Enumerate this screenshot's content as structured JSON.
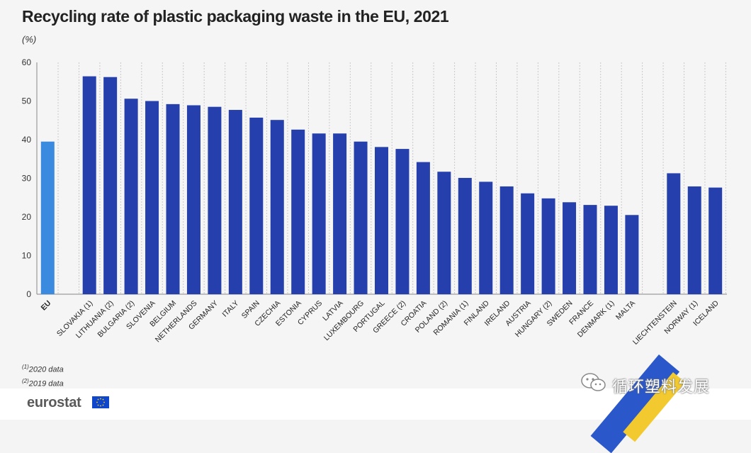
{
  "title": "Recycling rate of plastic packaging waste in the EU, 2021",
  "unit": "(%)",
  "notes": [
    {
      "mark": "(1)",
      "text": "2020 data"
    },
    {
      "mark": "(2)",
      "text": "2019 data"
    }
  ],
  "logo": "eurostat",
  "watermark": "循环塑料发展",
  "colors": {
    "eu": "#3a8be0",
    "country": "#2540ac",
    "grid": "#c9c9c9"
  },
  "chart_data": {
    "type": "bar",
    "title": "Recycling rate of plastic packaging waste in the EU, 2021",
    "ylabel": "(%)",
    "ylim": [
      0,
      60
    ],
    "yticks": [
      0,
      10,
      20,
      30,
      40,
      50,
      60
    ],
    "grid": "vertical dotted",
    "categories": [
      "EU",
      "SLOVAKIA (1)",
      "LITHUANIA (2)",
      "BULGARIA (2)",
      "SLOVENIA",
      "BELGIUM",
      "NETHERLANDS",
      "GERMANY",
      "ITALY",
      "SPAIN",
      "CZECHIA",
      "ESTONIA",
      "CYPRUS",
      "LATVIA",
      "LUXEMBOURG",
      "PORTUGAL",
      "GREECE (2)",
      "CROATIA",
      "POLAND (2)",
      "ROMANIA (1)",
      "FINLAND",
      "IRELAND",
      "AUSTRIA",
      "HUNGARY (2)",
      "SWEDEN",
      "FRANCE",
      "DENMARK (1)",
      "MALTA",
      "LIECHTENSTEIN",
      "NORWAY (1)",
      "ICELAND"
    ],
    "values": [
      39.5,
      56.4,
      56.2,
      50.6,
      50.0,
      49.2,
      48.9,
      48.5,
      47.7,
      45.7,
      45.1,
      42.6,
      41.6,
      41.6,
      39.5,
      38.1,
      37.6,
      34.2,
      31.7,
      30.1,
      29.1,
      27.9,
      26.1,
      24.8,
      23.8,
      23.1,
      22.9,
      20.5,
      31.3,
      27.9,
      27.6
    ]
  }
}
